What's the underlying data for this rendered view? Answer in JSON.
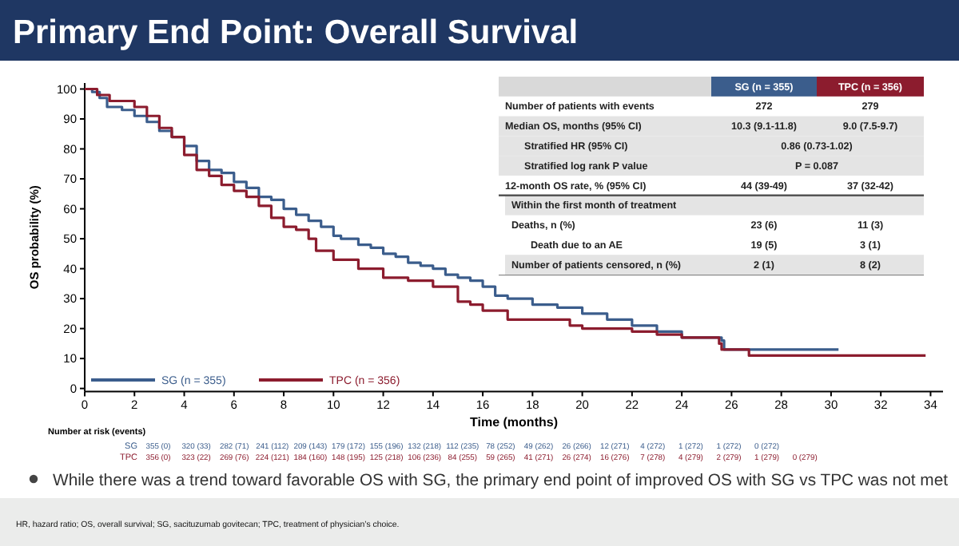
{
  "chart_data": {
    "type": "step",
    "title": "Primary End Point: Overall Survival",
    "xlabel": "Time (months)",
    "ylabel": "OS probability (%)",
    "xlim": [
      0,
      34.5
    ],
    "xticks": [
      0,
      2,
      4,
      6,
      8,
      10,
      12,
      14,
      16,
      18,
      20,
      22,
      24,
      26,
      28,
      30,
      32,
      34
    ],
    "ylim": [
      -1,
      102
    ],
    "yticks": [
      0,
      10,
      20,
      30,
      40,
      50,
      60,
      70,
      80,
      90,
      100
    ],
    "grid": false,
    "legend": "bottom left",
    "line_style": "solid",
    "series": [
      {
        "name": "SG (n = 355)",
        "color": "#3b5d8c",
        "x": [
          0,
          0.3,
          0.6,
          0.9,
          1.5,
          2,
          2.5,
          3,
          3.5,
          4,
          4.5,
          5,
          5.5,
          6,
          6.5,
          7,
          7.5,
          8,
          8.5,
          9,
          9.5,
          10,
          10.3,
          11,
          11.5,
          12,
          12.5,
          13,
          13.5,
          14,
          14.5,
          15,
          15.5,
          16,
          16.5,
          17,
          18,
          19,
          20,
          21,
          22,
          23,
          24,
          25.6,
          25.7,
          30.3
        ],
        "values": [
          100,
          99,
          97,
          94,
          93,
          91,
          89,
          86,
          84,
          81,
          76,
          73,
          72,
          69,
          67,
          64,
          63,
          60,
          58,
          56,
          54,
          51,
          50,
          48,
          47,
          45,
          44,
          42,
          41,
          40,
          38,
          37,
          36,
          34,
          31,
          30,
          28,
          27,
          25,
          23,
          21,
          19,
          17,
          16,
          13,
          13
        ]
      },
      {
        "name": "TPC (n = 356)",
        "color": "#8c1c2e",
        "x": [
          0,
          0.5,
          1,
          2,
          2.5,
          3,
          3.5,
          4,
          4.5,
          5,
          5.5,
          6,
          6.5,
          7,
          7.5,
          8,
          8.5,
          9,
          9.3,
          10,
          11,
          12,
          13,
          14,
          15,
          15.5,
          16,
          17,
          18,
          19.5,
          20,
          22,
          23,
          24,
          25.5,
          25.6,
          26.7,
          33.8
        ],
        "values": [
          100,
          98,
          96,
          94,
          91,
          87,
          84,
          78,
          73,
          71,
          68,
          66,
          64,
          61,
          57,
          54,
          53,
          50,
          46,
          43,
          40,
          37,
          36,
          34,
          29,
          28,
          26,
          23,
          23,
          21,
          20,
          19,
          18,
          17,
          15,
          13,
          11,
          11
        ]
      }
    ],
    "annotations": [
      "SG (n = 355)",
      "TPC (n = 356)",
      "Number of patients with events",
      "272",
      "279",
      "Median OS, months (95% CI)",
      "10.3 (9.1-11.8)",
      "9.0 (7.5-9.7)",
      "Stratified HR (95% CI)",
      "0.86 (0.73-1.02)",
      "Stratified log rank P value",
      "P = 0.087",
      "12-month OS rate, % (95% CI)",
      "44 (39-49)",
      "37 (32-42)",
      "Within the first month of treatment",
      "Deaths, n (%)",
      "23 (6)",
      "11 (3)",
      "Death due to an AE",
      "19 (5)",
      "3 (1)",
      "Number of patients censored, n (%)",
      "2 (1)",
      "8 (2)",
      "Number at risk (events)",
      "SG",
      "355 (0)",
      "320 (33)",
      "282 (71)",
      "241 (112)",
      "209 (143)",
      "179 (172)",
      "155 (196)",
      "132 (218)",
      "112 (235)",
      "78 (252)",
      "49 (262)",
      "26 (266)",
      "12 (271)",
      "4 (272)",
      "1 (272)",
      "1 (272)",
      "0 (272)",
      "TPC",
      "356 (0)",
      "323 (22)",
      "269 (76)",
      "224 (121)",
      "184 (160)",
      "148 (195)",
      "125 (218)",
      "106 (236)",
      "84 (255)",
      "59 (265)",
      "41 (271)",
      "26 (274)",
      "16 (276)",
      "7 (278)",
      "4 (279)",
      "2 (279)",
      "1 (279)",
      "0 (279)",
      "While there was a trend toward favorable OS with SG, the primary end point of improved OS with SG vs TPC was not met",
      "HR, hazard ratio; OS, overall survival; SG, sacituzumab govitecan; TPC, treatment of physician’s choice."
    ]
  }
}
